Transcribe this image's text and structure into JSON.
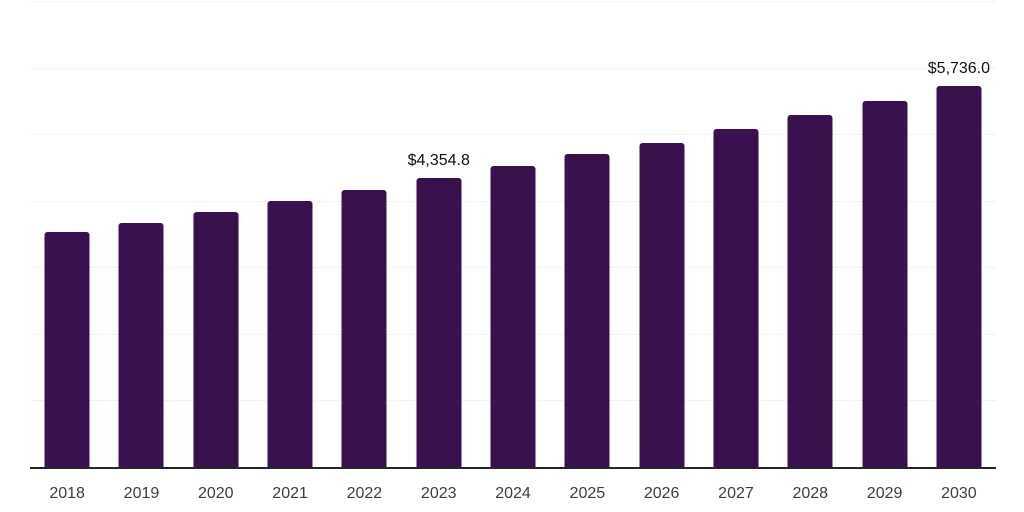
{
  "chart_data": {
    "type": "bar",
    "title": "",
    "xlabel": "",
    "ylabel": "",
    "categories": [
      "2018",
      "2019",
      "2020",
      "2021",
      "2022",
      "2023",
      "2024",
      "2025",
      "2026",
      "2027",
      "2028",
      "2029",
      "2030"
    ],
    "values": [
      3540,
      3685,
      3840,
      4015,
      4170,
      4354.8,
      4535,
      4710,
      4885,
      5090,
      5300,
      5520,
      5736
    ],
    "value_labels": [
      "",
      "",
      "",
      "",
      "",
      "$4,354.8",
      "",
      "",
      "",
      "",
      "",
      "",
      "$5,736.0"
    ],
    "ylim": [
      0,
      7000
    ],
    "grid_step": 1000,
    "grid": true,
    "legend": false,
    "y_tick_labels_visible": false,
    "colors": {
      "bar": "#38114e",
      "grid": "#f2f2f2",
      "axis": "#262626",
      "data_label": "#111111",
      "tick_label": "#3d3d3d",
      "background": "#ffffff"
    }
  }
}
